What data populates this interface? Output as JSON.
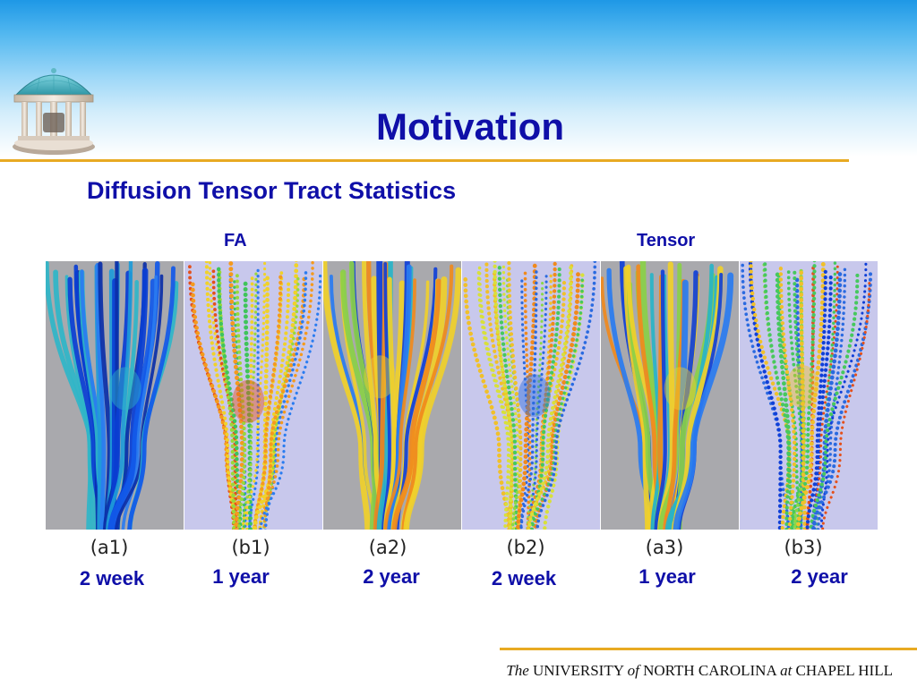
{
  "slide": {
    "title": "Motivation",
    "subtitle": "Diffusion Tensor Tract Statistics"
  },
  "columns": {
    "left_heading": "FA",
    "right_heading": "Tensor"
  },
  "panels": [
    {
      "caption": "(a1)",
      "style": "tubes",
      "background": "#a9a9ad",
      "colormap": "mostly-blue"
    },
    {
      "caption": "(b1)",
      "style": "dots",
      "background": "#c8c8ec",
      "colormap": "green-red"
    },
    {
      "caption": "(a2)",
      "style": "tubes",
      "background": "#a9a9ad",
      "colormap": "blue-yellow"
    },
    {
      "caption": "(b2)",
      "style": "dots",
      "background": "#c8c8ec",
      "colormap": "green-yellow"
    },
    {
      "caption": "(a3)",
      "style": "tubes",
      "background": "#a9a9ad",
      "colormap": "blue-yellow"
    },
    {
      "caption": "(b3)",
      "style": "dots",
      "background": "#c8c8ec",
      "colormap": "green-blue"
    }
  ],
  "ages": [
    "2 week",
    "1 year",
    "2 year",
    "2 week",
    "1 year",
    "2 year"
  ],
  "footer": {
    "the": "The",
    "university": "UNIVERSITY",
    "of": "of",
    "state": "NORTH CAROLINA",
    "at": "at",
    "campus": "CHAPEL HILL"
  },
  "colors": {
    "title_blue": "#0f0fa8",
    "accent_gold": "#e8aa22"
  }
}
